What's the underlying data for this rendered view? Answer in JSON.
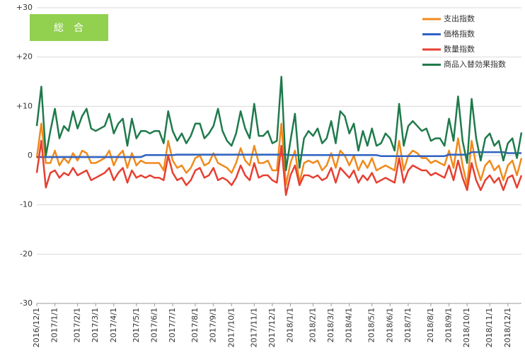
{
  "chart_data": {
    "type": "line",
    "title": "総　合",
    "legend": "upper right",
    "grid": true,
    "ylim": [
      -30,
      30
    ],
    "yticks": [
      {
        "value": -30,
        "label": "-30"
      },
      {
        "value": -20,
        "label": "-20"
      },
      {
        "value": -10,
        "label": "-10"
      },
      0,
      {
        "value": 10,
        "label": "+10"
      },
      {
        "value": 20,
        "label": "+20"
      },
      {
        "value": 30,
        "label": "+30"
      }
    ],
    "categories": [
      "2016/12/1",
      null,
      null,
      null,
      "2017/1/1",
      null,
      null,
      null,
      null,
      "2017/2/1",
      null,
      null,
      null,
      "2017/3/1",
      null,
      null,
      null,
      "2017/4/1",
      null,
      null,
      null,
      null,
      "2017/5/1",
      null,
      null,
      null,
      "2017/6/1",
      null,
      null,
      null,
      "2017/7/1",
      null,
      null,
      null,
      null,
      "2017/8/1",
      null,
      null,
      null,
      "2017/9/1",
      null,
      null,
      null,
      "2017/10/1",
      null,
      null,
      null,
      null,
      "2017/11/1",
      null,
      null,
      null,
      "2017/12/1",
      null,
      null,
      null,
      "2018/1/1",
      null,
      null,
      null,
      null,
      "2018/2/1",
      null,
      null,
      null,
      "2018/3/1",
      null,
      null,
      null,
      "2018/4/1",
      null,
      null,
      null,
      null,
      "2018/5/1",
      null,
      null,
      null,
      "2018/6/1",
      null,
      null,
      null,
      "2018/7/1",
      null,
      null,
      null,
      null,
      "2018/8/1",
      null,
      null,
      null,
      "2018/9/1",
      null,
      null,
      null,
      "2018/10/1",
      null,
      null,
      null,
      null,
      "2018/11/1",
      null,
      null,
      null,
      "2018/12/1",
      null,
      null,
      null
    ],
    "series": [
      {
        "name": "支出指数",
        "color": "#f08a1c",
        "values": [
          -0.5,
          6.5,
          -1.5,
          -1.5,
          1,
          -2,
          -0.5,
          -1.5,
          0.5,
          -1,
          1,
          0.5,
          -1.5,
          -1.5,
          -1,
          -0.5,
          1,
          -2,
          0,
          1,
          -2.5,
          0.5,
          -2,
          -1,
          -1.5,
          -1.5,
          -1.5,
          -1.5,
          -3,
          3,
          -1,
          -2.5,
          -2,
          -3.5,
          -2.5,
          -0.5,
          0,
          -2,
          -1.5,
          0.5,
          -1.5,
          -2,
          -2.5,
          -3.5,
          -1.5,
          1.5,
          -1,
          -2,
          2,
          -1.5,
          -1.5,
          -1,
          -3,
          -3,
          6.5,
          -6,
          -1.5,
          1,
          -5.5,
          -1.5,
          -1,
          -1.5,
          -1,
          -3,
          -2,
          0.5,
          -2.5,
          1,
          0,
          -2,
          0,
          -3,
          -1,
          -2.5,
          -0.5,
          -3,
          -2.5,
          -2,
          -2.5,
          -3,
          3,
          -3,
          0,
          1,
          0.5,
          -0.5,
          -0.5,
          -1.5,
          -1,
          -1.5,
          -2,
          1,
          -2.5,
          3.5,
          -2,
          -6,
          3,
          -2,
          -5,
          -2,
          -1,
          -3,
          -2,
          -5,
          -2,
          -1,
          -4,
          -0.5
        ]
      },
      {
        "name": "価格指数",
        "color": "#2e62c2",
        "values": [
          -0.3,
          -0.3,
          -0.3,
          -0.3,
          -0.3,
          -0.3,
          -0.3,
          -0.3,
          -0.3,
          -0.3,
          -0.3,
          -0.3,
          -0.3,
          -0.3,
          -0.3,
          -0.3,
          -0.3,
          -0.3,
          -0.3,
          -0.3,
          -0.3,
          -0.3,
          -0.3,
          -0.3,
          0.1,
          0.1,
          0.1,
          0.1,
          0.1,
          0.1,
          0.1,
          0.2,
          0.2,
          0.2,
          0.2,
          0.2,
          0.2,
          0.2,
          0.2,
          0.2,
          0.2,
          0.2,
          0.2,
          0.2,
          0.2,
          0.2,
          0.2,
          0.2,
          0.2,
          0.2,
          0.2,
          0.2,
          0.2,
          0.2,
          0.2,
          0.2,
          0.1,
          0.1,
          0.1,
          0.1,
          0.1,
          0.1,
          0.1,
          0.1,
          0.1,
          0.1,
          0.1,
          0.1,
          0.1,
          0.1,
          0.1,
          0.1,
          0.1,
          0.1,
          0.1,
          0.1,
          -0.1,
          -0.1,
          -0.1,
          -0.1,
          -0.1,
          -0.1,
          -0.1,
          -0.1,
          -0.1,
          -0.1,
          -0.1,
          -0.1,
          -0.1,
          -0.1,
          -0.1,
          0.2,
          0.2,
          0.2,
          0.2,
          0.2,
          0.7,
          0.7,
          0.7,
          0.7,
          0.7,
          0.7,
          0.7,
          0.7,
          0.5,
          0.5,
          0.5,
          0.5
        ]
      },
      {
        "name": "数量指数",
        "color": "#e64032",
        "values": [
          -3.5,
          3,
          -6.5,
          -3.5,
          -3,
          -4.5,
          -3.5,
          -4,
          -2.5,
          -4,
          -3.5,
          -3,
          -5,
          -4.5,
          -4,
          -3.5,
          -2.5,
          -5,
          -3.5,
          -2.5,
          -5.5,
          -3,
          -4.5,
          -4,
          -4.5,
          -4,
          -4.5,
          -4.5,
          -5,
          0,
          -3.5,
          -5,
          -4.5,
          -6,
          -5,
          -3,
          -2.5,
          -4.5,
          -4,
          -2.5,
          -5,
          -4.5,
          -5,
          -6,
          -4.5,
          -2,
          -4,
          -5,
          -1.5,
          -4.5,
          -4,
          -4,
          -5,
          -5.5,
          2,
          -8,
          -4,
          -2,
          -6,
          -4,
          -4,
          -4.5,
          -4,
          -5,
          -4.5,
          -2.5,
          -5.5,
          -2.5,
          -3.5,
          -4.5,
          -3,
          -5.5,
          -4,
          -5,
          -3.5,
          -5.5,
          -5,
          -4.5,
          -5,
          -5.5,
          -0.5,
          -5.5,
          -3,
          -2,
          -2.5,
          -3,
          -3,
          -4,
          -3.5,
          -4,
          -4.5,
          -2,
          -5,
          -1,
          -4.5,
          -7,
          -1.5,
          -5,
          -7,
          -5,
          -4,
          -5.5,
          -4.5,
          -7,
          -4.5,
          -4,
          -6.5,
          -4
        ]
      },
      {
        "name": "商品入替効果指数",
        "color": "#1f7a4b",
        "values": [
          6,
          14,
          0,
          5,
          9.5,
          3.5,
          6,
          5,
          9,
          5.5,
          8,
          9.5,
          5.5,
          5,
          5.5,
          6,
          8.5,
          4.5,
          6.5,
          7.5,
          2,
          7.5,
          3.5,
          5,
          5,
          4.5,
          5,
          5,
          2.5,
          9,
          5,
          3,
          4.5,
          2.5,
          4,
          6.5,
          6.5,
          3.5,
          4.5,
          6,
          9.5,
          5,
          3,
          2,
          4.5,
          9,
          5.5,
          3.5,
          10.5,
          4,
          4,
          5,
          2.5,
          3,
          16,
          -3,
          3,
          8.5,
          -2.5,
          3.5,
          5,
          4,
          5.5,
          2.5,
          3.5,
          7,
          2.5,
          9,
          8,
          4.5,
          6.5,
          1,
          5,
          2,
          5.5,
          2,
          2.5,
          4.5,
          3.5,
          1,
          10.5,
          2,
          6,
          7,
          6,
          5,
          5.5,
          3,
          3.5,
          3.5,
          2,
          7.5,
          3,
          12,
          3,
          -1.5,
          11.5,
          3.5,
          -1,
          3.5,
          4.5,
          2,
          3,
          -1,
          2.5,
          3.5,
          -0.5,
          4.7
        ]
      }
    ]
  }
}
